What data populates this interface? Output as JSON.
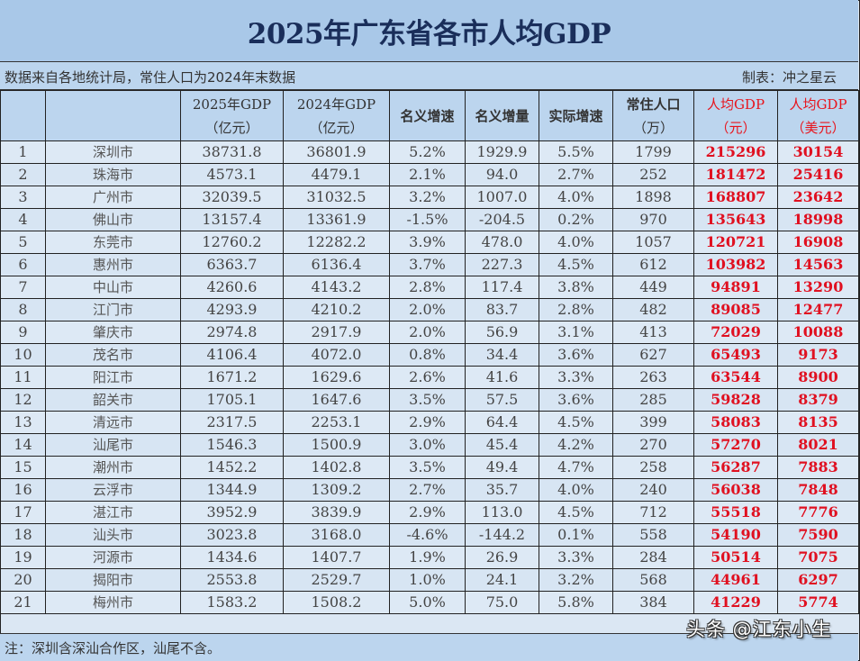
{
  "title": "2025年广东省各市人均GDP",
  "source_note": "数据来自各地统计局，常住人口为2024年末数据",
  "author": "制表：冲之星云",
  "footnote": "注：深圳含深汕合作区，汕尾不含。",
  "watermark": "头条 @江东小生",
  "colors": {
    "title_bg": "#a9c8e8",
    "header_bg": "#bcd5ee",
    "row_bg": "#dde9f5",
    "title_text": "#1a2e5a",
    "highlight_red": "#e01020"
  },
  "table": {
    "columns": [
      {
        "line1": "",
        "line2": ""
      },
      {
        "line1": "",
        "line2": ""
      },
      {
        "line1": "2025年GDP",
        "line2": "（亿元）"
      },
      {
        "line1": "2024年GDP",
        "line2": "（亿元）"
      },
      {
        "line1": "名义增速",
        "line2": ""
      },
      {
        "line1": "名义增量",
        "line2": ""
      },
      {
        "line1": "实际增速",
        "line2": ""
      },
      {
        "line1": "常住人口",
        "line2": "（万）"
      },
      {
        "line1": "人均GDP",
        "line2": "（元）"
      },
      {
        "line1": "人均GDP",
        "line2": "（美元）"
      }
    ],
    "rows": [
      {
        "rank": "1",
        "city": "深圳市",
        "gdp2025": "38731.8",
        "gdp2024": "36801.9",
        "nominal_growth": "5.2%",
        "nominal_increase": "1929.9",
        "real_growth": "5.5%",
        "population": "1799",
        "per_capita_cny": "215296",
        "per_capita_usd": "30154"
      },
      {
        "rank": "2",
        "city": "珠海市",
        "gdp2025": "4573.1",
        "gdp2024": "4479.1",
        "nominal_growth": "2.1%",
        "nominal_increase": "94.0",
        "real_growth": "2.7%",
        "population": "252",
        "per_capita_cny": "181472",
        "per_capita_usd": "25416"
      },
      {
        "rank": "3",
        "city": "广州市",
        "gdp2025": "32039.5",
        "gdp2024": "31032.5",
        "nominal_growth": "3.2%",
        "nominal_increase": "1007.0",
        "real_growth": "4.0%",
        "population": "1898",
        "per_capita_cny": "168807",
        "per_capita_usd": "23642"
      },
      {
        "rank": "4",
        "city": "佛山市",
        "gdp2025": "13157.4",
        "gdp2024": "13361.9",
        "nominal_growth": "-1.5%",
        "nominal_increase": "-204.5",
        "real_growth": "0.2%",
        "population": "970",
        "per_capita_cny": "135643",
        "per_capita_usd": "18998"
      },
      {
        "rank": "5",
        "city": "东莞市",
        "gdp2025": "12760.2",
        "gdp2024": "12282.2",
        "nominal_growth": "3.9%",
        "nominal_increase": "478.0",
        "real_growth": "4.0%",
        "population": "1057",
        "per_capita_cny": "120721",
        "per_capita_usd": "16908"
      },
      {
        "rank": "6",
        "city": "惠州市",
        "gdp2025": "6363.7",
        "gdp2024": "6136.4",
        "nominal_growth": "3.7%",
        "nominal_increase": "227.3",
        "real_growth": "4.5%",
        "population": "612",
        "per_capita_cny": "103982",
        "per_capita_usd": "14563"
      },
      {
        "rank": "7",
        "city": "中山市",
        "gdp2025": "4260.6",
        "gdp2024": "4143.2",
        "nominal_growth": "2.8%",
        "nominal_increase": "117.4",
        "real_growth": "3.8%",
        "population": "449",
        "per_capita_cny": "94891",
        "per_capita_usd": "13290"
      },
      {
        "rank": "8",
        "city": "江门市",
        "gdp2025": "4293.9",
        "gdp2024": "4210.2",
        "nominal_growth": "2.0%",
        "nominal_increase": "83.7",
        "real_growth": "2.8%",
        "population": "482",
        "per_capita_cny": "89085",
        "per_capita_usd": "12477"
      },
      {
        "rank": "9",
        "city": "肇庆市",
        "gdp2025": "2974.8",
        "gdp2024": "2917.9",
        "nominal_growth": "2.0%",
        "nominal_increase": "56.9",
        "real_growth": "3.1%",
        "population": "413",
        "per_capita_cny": "72029",
        "per_capita_usd": "10088"
      },
      {
        "rank": "10",
        "city": "茂名市",
        "gdp2025": "4106.4",
        "gdp2024": "4072.0",
        "nominal_growth": "0.8%",
        "nominal_increase": "34.4",
        "real_growth": "3.6%",
        "population": "627",
        "per_capita_cny": "65493",
        "per_capita_usd": "9173"
      },
      {
        "rank": "11",
        "city": "阳江市",
        "gdp2025": "1671.2",
        "gdp2024": "1629.6",
        "nominal_growth": "2.6%",
        "nominal_increase": "41.6",
        "real_growth": "3.3%",
        "population": "263",
        "per_capita_cny": "63544",
        "per_capita_usd": "8900"
      },
      {
        "rank": "12",
        "city": "韶关市",
        "gdp2025": "1705.1",
        "gdp2024": "1647.6",
        "nominal_growth": "3.5%",
        "nominal_increase": "57.5",
        "real_growth": "3.6%",
        "population": "285",
        "per_capita_cny": "59828",
        "per_capita_usd": "8379"
      },
      {
        "rank": "13",
        "city": "清远市",
        "gdp2025": "2317.5",
        "gdp2024": "2253.1",
        "nominal_growth": "2.9%",
        "nominal_increase": "64.4",
        "real_growth": "4.5%",
        "population": "399",
        "per_capita_cny": "58083",
        "per_capita_usd": "8135"
      },
      {
        "rank": "14",
        "city": "汕尾市",
        "gdp2025": "1546.3",
        "gdp2024": "1500.9",
        "nominal_growth": "3.0%",
        "nominal_increase": "45.4",
        "real_growth": "4.2%",
        "population": "270",
        "per_capita_cny": "57270",
        "per_capita_usd": "8021"
      },
      {
        "rank": "15",
        "city": "潮州市",
        "gdp2025": "1452.2",
        "gdp2024": "1402.8",
        "nominal_growth": "3.5%",
        "nominal_increase": "49.4",
        "real_growth": "4.7%",
        "population": "258",
        "per_capita_cny": "56287",
        "per_capita_usd": "7883"
      },
      {
        "rank": "16",
        "city": "云浮市",
        "gdp2025": "1344.9",
        "gdp2024": "1309.2",
        "nominal_growth": "2.7%",
        "nominal_increase": "35.7",
        "real_growth": "4.0%",
        "population": "240",
        "per_capita_cny": "56038",
        "per_capita_usd": "7848"
      },
      {
        "rank": "17",
        "city": "湛江市",
        "gdp2025": "3952.9",
        "gdp2024": "3839.9",
        "nominal_growth": "2.9%",
        "nominal_increase": "113.0",
        "real_growth": "4.5%",
        "population": "712",
        "per_capita_cny": "55518",
        "per_capita_usd": "7776"
      },
      {
        "rank": "18",
        "city": "汕头市",
        "gdp2025": "3023.8",
        "gdp2024": "3168.0",
        "nominal_growth": "-4.6%",
        "nominal_increase": "-144.2",
        "real_growth": "0.1%",
        "population": "558",
        "per_capita_cny": "54190",
        "per_capita_usd": "7590"
      },
      {
        "rank": "19",
        "city": "河源市",
        "gdp2025": "1434.6",
        "gdp2024": "1407.7",
        "nominal_growth": "1.9%",
        "nominal_increase": "26.9",
        "real_growth": "3.3%",
        "population": "284",
        "per_capita_cny": "50514",
        "per_capita_usd": "7075"
      },
      {
        "rank": "20",
        "city": "揭阳市",
        "gdp2025": "2553.8",
        "gdp2024": "2529.7",
        "nominal_growth": "1.0%",
        "nominal_increase": "24.1",
        "real_growth": "3.2%",
        "population": "568",
        "per_capita_cny": "44961",
        "per_capita_usd": "6297"
      },
      {
        "rank": "21",
        "city": "梅州市",
        "gdp2025": "1583.2",
        "gdp2024": "1508.2",
        "nominal_growth": "5.0%",
        "nominal_increase": "75.0",
        "real_growth": "5.8%",
        "population": "384",
        "per_capita_cny": "41229",
        "per_capita_usd": "5774"
      }
    ]
  }
}
